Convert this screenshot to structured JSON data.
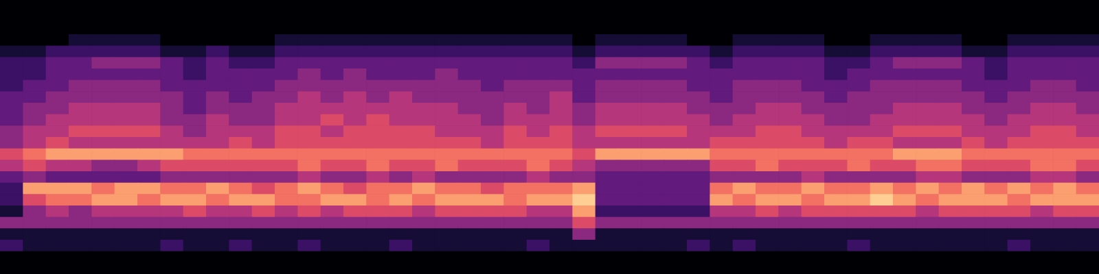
{
  "chart_data": {
    "type": "heatmap",
    "tick_labels": false,
    "zlim": [
      0,
      10
    ],
    "cells": [
      [
        0,
        0,
        0,
        0,
        0,
        0,
        0,
        0,
        0,
        0,
        0,
        0,
        0,
        0,
        0,
        0,
        0,
        0,
        0,
        0,
        0,
        0,
        0,
        0,
        0,
        0,
        0,
        0,
        0,
        0,
        0,
        0,
        0,
        0,
        0,
        0,
        0,
        0,
        0,
        0,
        0,
        0,
        0,
        0,
        0,
        0,
        0,
        0
      ],
      [
        0,
        0,
        0,
        0,
        0,
        0,
        0,
        0,
        0,
        0,
        0,
        0,
        0,
        0,
        0,
        0,
        0,
        0,
        0,
        0,
        0,
        0,
        0,
        0,
        0,
        0,
        0,
        0,
        0,
        0,
        0,
        0,
        0,
        0,
        0,
        0,
        0,
        0,
        0,
        0,
        0,
        0,
        0,
        0,
        0,
        0,
        0,
        0
      ],
      [
        0,
        0,
        0,
        0,
        0,
        0,
        0,
        0,
        0,
        0,
        0,
        0,
        0,
        0,
        0,
        0,
        0,
        0,
        0,
        0,
        0,
        0,
        0,
        0,
        0,
        0,
        0,
        0,
        0,
        0,
        0,
        0,
        0,
        0,
        0,
        0,
        0,
        0,
        0,
        0,
        0,
        0,
        0,
        0,
        0,
        0,
        0,
        0
      ],
      [
        0,
        0,
        0,
        1,
        1,
        1,
        1,
        0,
        0,
        0,
        0,
        0,
        1,
        1,
        1,
        1,
        1,
        1,
        1,
        1,
        1,
        1,
        1,
        1,
        1,
        0,
        1,
        1,
        1,
        1,
        0,
        0,
        1,
        1,
        1,
        1,
        0,
        0,
        1,
        1,
        1,
        1,
        0,
        0,
        1,
        1,
        1,
        1
      ],
      [
        1,
        1,
        2,
        2,
        2,
        2,
        2,
        1,
        1,
        2,
        1,
        1,
        2,
        2,
        2,
        2,
        2,
        2,
        2,
        2,
        2,
        2,
        2,
        2,
        2,
        1,
        2,
        2,
        2,
        2,
        2,
        1,
        2,
        2,
        2,
        2,
        1,
        1,
        2,
        2,
        2,
        2,
        1,
        1,
        2,
        2,
        2,
        2
      ],
      [
        2,
        2,
        3,
        3,
        4,
        4,
        4,
        3,
        2,
        3,
        2,
        2,
        3,
        3,
        3,
        3,
        3,
        3,
        3,
        3,
        3,
        3,
        3,
        3,
        3,
        2,
        4,
        4,
        4,
        4,
        3,
        2,
        3,
        3,
        3,
        3,
        2,
        2,
        3,
        4,
        4,
        4,
        3,
        2,
        3,
        3,
        3,
        3
      ],
      [
        2,
        2,
        3,
        3,
        3,
        3,
        3,
        3,
        2,
        3,
        3,
        3,
        3,
        4,
        3,
        4,
        3,
        3,
        3,
        4,
        3,
        3,
        3,
        3,
        3,
        3,
        3,
        3,
        3,
        3,
        3,
        3,
        3,
        3,
        3,
        3,
        2,
        3,
        3,
        3,
        3,
        3,
        3,
        2,
        3,
        3,
        3,
        3
      ],
      [
        2,
        3,
        3,
        4,
        4,
        4,
        4,
        3,
        3,
        3,
        3,
        3,
        4,
        4,
        4,
        4,
        4,
        4,
        4,
        4,
        4,
        3,
        4,
        4,
        4,
        3,
        4,
        4,
        4,
        4,
        3,
        3,
        4,
        4,
        4,
        3,
        3,
        3,
        4,
        4,
        4,
        4,
        3,
        3,
        3,
        4,
        4,
        3
      ],
      [
        3,
        3,
        4,
        4,
        4,
        4,
        4,
        4,
        3,
        4,
        3,
        4,
        4,
        5,
        4,
        5,
        4,
        5,
        4,
        4,
        4,
        4,
        4,
        4,
        5,
        3,
        4,
        4,
        4,
        4,
        4,
        3,
        4,
        4,
        4,
        4,
        3,
        4,
        4,
        4,
        4,
        4,
        4,
        3,
        4,
        4,
        4,
        4
      ],
      [
        3,
        4,
        4,
        5,
        5,
        5,
        5,
        4,
        3,
        4,
        4,
        4,
        5,
        5,
        5,
        5,
        5,
        5,
        5,
        5,
        4,
        4,
        5,
        4,
        5,
        4,
        5,
        5,
        5,
        5,
        4,
        4,
        4,
        5,
        5,
        4,
        4,
        4,
        4,
        5,
        5,
        5,
        4,
        4,
        4,
        5,
        5,
        4
      ],
      [
        3,
        4,
        5,
        5,
        5,
        5,
        5,
        4,
        4,
        5,
        4,
        4,
        5,
        5,
        6,
        5,
        6,
        5,
        5,
        5,
        5,
        4,
        5,
        5,
        5,
        4,
        5,
        5,
        5,
        5,
        5,
        4,
        5,
        5,
        5,
        5,
        4,
        4,
        5,
        5,
        5,
        5,
        5,
        4,
        5,
        5,
        5,
        5
      ],
      [
        4,
        5,
        5,
        6,
        6,
        6,
        6,
        5,
        4,
        5,
        5,
        5,
        6,
        6,
        5,
        6,
        6,
        6,
        6,
        5,
        5,
        5,
        6,
        5,
        6,
        5,
        6,
        6,
        6,
        6,
        5,
        5,
        5,
        6,
        6,
        5,
        5,
        5,
        5,
        6,
        6,
        6,
        5,
        5,
        5,
        6,
        6,
        5
      ],
      [
        4,
        5,
        6,
        5,
        5,
        5,
        5,
        5,
        5,
        5,
        6,
        5,
        6,
        6,
        6,
        6,
        6,
        6,
        6,
        6,
        6,
        5,
        6,
        6,
        6,
        5,
        5,
        5,
        5,
        5,
        5,
        6,
        6,
        6,
        6,
        6,
        5,
        6,
        6,
        5,
        5,
        5,
        6,
        5,
        6,
        6,
        6,
        6
      ],
      [
        6,
        7,
        8,
        8,
        8,
        8,
        8,
        8,
        7,
        7,
        7,
        7,
        7,
        7,
        7,
        7,
        7,
        7,
        7,
        7,
        7,
        7,
        7,
        7,
        7,
        6,
        8,
        8,
        8,
        8,
        8,
        7,
        7,
        7,
        7,
        7,
        7,
        7,
        7,
        8,
        8,
        8,
        7,
        7,
        7,
        7,
        7,
        7
      ],
      [
        5,
        6,
        5,
        5,
        4,
        4,
        5,
        6,
        6,
        6,
        6,
        6,
        6,
        7,
        6,
        6,
        7,
        6,
        6,
        7,
        6,
        6,
        6,
        7,
        6,
        5,
        4,
        4,
        4,
        4,
        4,
        6,
        6,
        7,
        6,
        6,
        6,
        7,
        6,
        6,
        7,
        7,
        6,
        6,
        6,
        7,
        7,
        6
      ],
      [
        3,
        4,
        3,
        3,
        3,
        3,
        3,
        4,
        4,
        4,
        4,
        4,
        4,
        5,
        4,
        4,
        5,
        4,
        5,
        4,
        4,
        4,
        4,
        5,
        4,
        4,
        3,
        3,
        3,
        3,
        3,
        4,
        4,
        4,
        4,
        5,
        4,
        4,
        4,
        4,
        5,
        5,
        4,
        4,
        4,
        5,
        5,
        4
      ],
      [
        2,
        8,
        8,
        8,
        7,
        8,
        8,
        7,
        7,
        8,
        7,
        6,
        7,
        8,
        7,
        6,
        7,
        7,
        8,
        7,
        7,
        6,
        7,
        7,
        7,
        8,
        3,
        3,
        3,
        3,
        3,
        7,
        8,
        7,
        7,
        8,
        7,
        7,
        8,
        7,
        8,
        7,
        8,
        7,
        8,
        7,
        8,
        7
      ],
      [
        2,
        6,
        7,
        7,
        8,
        8,
        7,
        8,
        8,
        7,
        8,
        8,
        7,
        7,
        8,
        8,
        7,
        8,
        7,
        8,
        8,
        8,
        7,
        8,
        8,
        9,
        3,
        3,
        3,
        3,
        3,
        8,
        7,
        8,
        8,
        7,
        8,
        8,
        9,
        8,
        7,
        8,
        8,
        8,
        7,
        8,
        8,
        8
      ],
      [
        1,
        4,
        5,
        4,
        5,
        5,
        5,
        5,
        6,
        5,
        5,
        6,
        5,
        6,
        5,
        6,
        6,
        6,
        5,
        6,
        6,
        6,
        6,
        5,
        5,
        8,
        2,
        2,
        2,
        2,
        2,
        5,
        5,
        6,
        5,
        6,
        6,
        6,
        6,
        6,
        5,
        6,
        6,
        6,
        6,
        5,
        6,
        6
      ],
      [
        4,
        4,
        4,
        4,
        4,
        4,
        4,
        4,
        4,
        4,
        4,
        4,
        4,
        4,
        4,
        4,
        4,
        4,
        4,
        4,
        4,
        4,
        4,
        4,
        4,
        6,
        4,
        4,
        4,
        4,
        4,
        4,
        4,
        4,
        4,
        4,
        4,
        4,
        4,
        4,
        4,
        4,
        4,
        4,
        4,
        4,
        4,
        4
      ],
      [
        1,
        1,
        1,
        1,
        1,
        1,
        1,
        1,
        1,
        1,
        1,
        1,
        1,
        1,
        1,
        1,
        1,
        1,
        1,
        1,
        1,
        1,
        1,
        1,
        1,
        4,
        1,
        1,
        1,
        1,
        1,
        1,
        1,
        1,
        1,
        1,
        1,
        1,
        1,
        1,
        1,
        1,
        1,
        1,
        1,
        1,
        1,
        1
      ],
      [
        2,
        1,
        1,
        1,
        1,
        1,
        1,
        2,
        1,
        1,
        2,
        1,
        1,
        2,
        1,
        1,
        1,
        2,
        1,
        1,
        1,
        1,
        1,
        2,
        1,
        1,
        1,
        1,
        1,
        1,
        2,
        1,
        2,
        1,
        1,
        1,
        1,
        2,
        1,
        1,
        1,
        1,
        1,
        1,
        2,
        1,
        1,
        1
      ],
      [
        0,
        0,
        0,
        0,
        0,
        0,
        0,
        0,
        0,
        0,
        0,
        0,
        0,
        0,
        0,
        0,
        0,
        0,
        0,
        0,
        0,
        0,
        0,
        0,
        0,
        0,
        0,
        0,
        0,
        0,
        0,
        0,
        0,
        0,
        0,
        0,
        0,
        0,
        0,
        0,
        0,
        0,
        0,
        0,
        0,
        0,
        0,
        0
      ],
      [
        0,
        0,
        0,
        0,
        0,
        0,
        0,
        0,
        0,
        0,
        0,
        0,
        0,
        0,
        0,
        0,
        0,
        0,
        0,
        0,
        0,
        0,
        0,
        0,
        0,
        0,
        0,
        0,
        0,
        0,
        0,
        0,
        0,
        0,
        0,
        0,
        0,
        0,
        0,
        0,
        0,
        0,
        0,
        0,
        0,
        0,
        0,
        0
      ]
    ]
  }
}
